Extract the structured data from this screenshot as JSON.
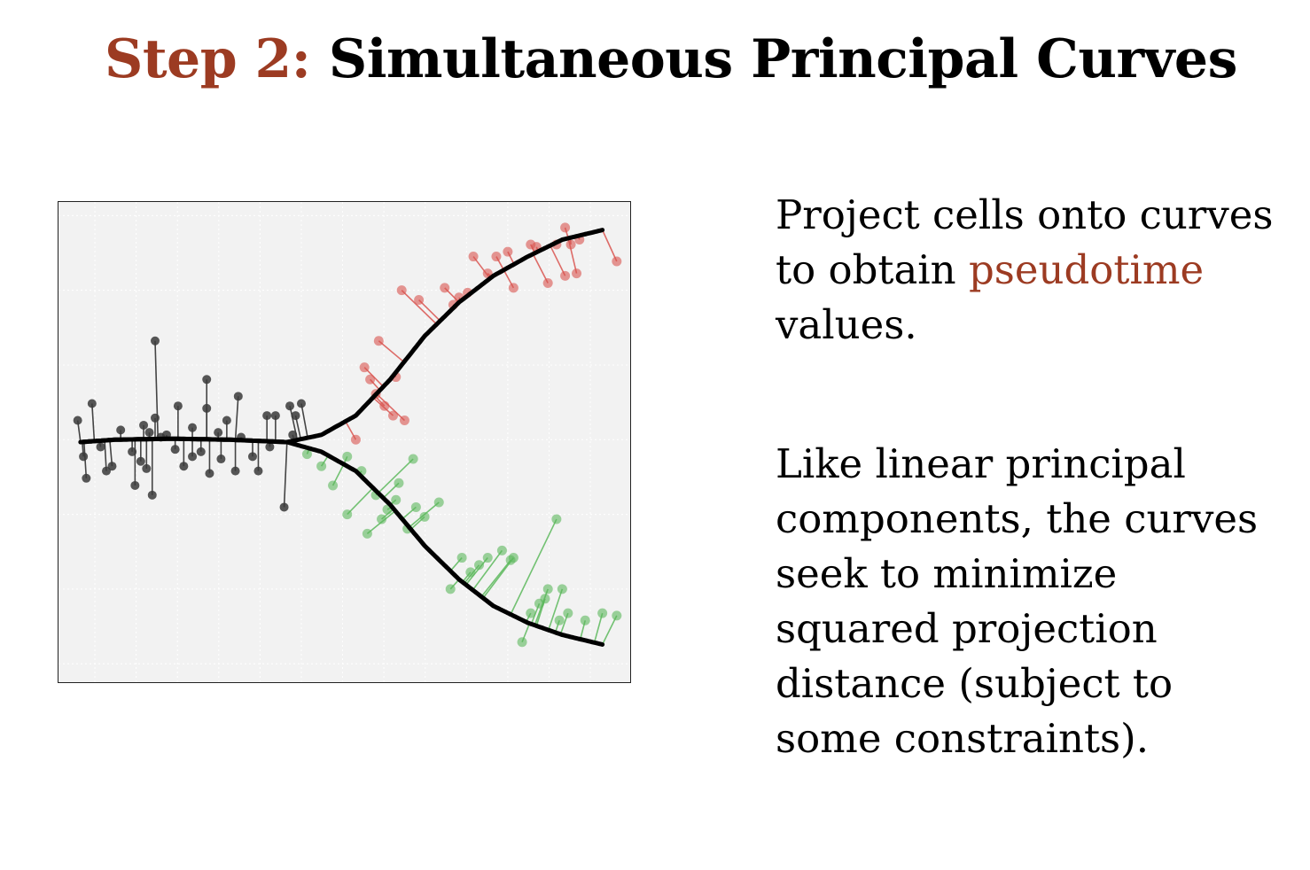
{
  "title": {
    "prefix": "Step 2:",
    "main": "Simultaneous Principal Curves"
  },
  "colors": {
    "accent": "#9c3b22",
    "plot_background": "#f2f2f2",
    "root_lineage": "#3a3a3a",
    "lineage_red": "#d9534f",
    "lineage_green": "#5cb85c",
    "curve": "#000000"
  },
  "paragraph1": {
    "lines": [
      "Project cells onto curves",
      "to obtain ",
      "values."
    ],
    "highlight": "pseudotime"
  },
  "paragraph2": {
    "lines": [
      "Like linear principal",
      "components, the curves",
      "seek to minimize",
      "squared projection",
      "distance (subject to",
      "some constraints)."
    ]
  },
  "chart_data": {
    "type": "scatter",
    "title": "",
    "xlabel": "",
    "ylabel": "",
    "xlim": [
      0,
      10
    ],
    "ylim": [
      -5,
      5
    ],
    "grid": true,
    "curves": [
      {
        "name": "",
        "x": [
          0.4,
          1.0,
          2.0,
          3.0,
          4.0,
          4.6,
          5.2,
          5.8,
          6.4,
          7.0,
          7.6,
          8.2,
          8.8,
          9.5
        ],
        "y": [
          0,
          0.05,
          0.07,
          0.05,
          0.0,
          0.15,
          0.55,
          1.3,
          2.2,
          2.9,
          3.45,
          3.85,
          4.2,
          4.4
        ]
      },
      {
        "name": "",
        "x": [
          0.4,
          1.0,
          2.0,
          3.0,
          4.0,
          4.6,
          5.2,
          5.8,
          6.4,
          7.0,
          7.6,
          8.2,
          8.8,
          9.5
        ],
        "y": [
          0,
          0.05,
          0.07,
          0.05,
          0.0,
          -0.2,
          -0.6,
          -1.3,
          -2.15,
          -2.85,
          -3.4,
          -3.75,
          -4.0,
          -4.2
        ]
      }
    ],
    "points": [
      {
        "g": "root",
        "x": 0.35,
        "y": 0.45
      },
      {
        "g": "root",
        "x": 0.45,
        "y": -0.3
      },
      {
        "g": "root",
        "x": 0.5,
        "y": -0.75
      },
      {
        "g": "root",
        "x": 0.6,
        "y": 0.8
      },
      {
        "g": "root",
        "x": 0.75,
        "y": -0.1
      },
      {
        "g": "root",
        "x": 0.85,
        "y": -0.6
      },
      {
        "g": "root",
        "x": 0.95,
        "y": -0.5
      },
      {
        "g": "root",
        "x": 1.1,
        "y": 0.25
      },
      {
        "g": "root",
        "x": 1.3,
        "y": -0.2
      },
      {
        "g": "root",
        "x": 1.35,
        "y": -0.9
      },
      {
        "g": "root",
        "x": 1.45,
        "y": -0.4
      },
      {
        "g": "root",
        "x": 1.5,
        "y": 0.35
      },
      {
        "g": "root",
        "x": 1.6,
        "y": 0.2
      },
      {
        "g": "root",
        "x": 1.65,
        "y": -1.1
      },
      {
        "g": "root",
        "x": 1.7,
        "y": 0.5
      },
      {
        "g": "root",
        "x": 1.7,
        "y": 2.1
      },
      {
        "g": "root",
        "x": 1.8,
        "y": 0.1
      },
      {
        "g": "root",
        "x": 1.9,
        "y": 0.15
      },
      {
        "g": "root",
        "x": 2.05,
        "y": -0.15
      },
      {
        "g": "root",
        "x": 2.1,
        "y": 0.75
      },
      {
        "g": "root",
        "x": 2.2,
        "y": -0.5
      },
      {
        "g": "root",
        "x": 2.35,
        "y": -0.3
      },
      {
        "g": "root",
        "x": 2.35,
        "y": 0.3
      },
      {
        "g": "root",
        "x": 2.5,
        "y": -0.2
      },
      {
        "g": "root",
        "x": 2.6,
        "y": 0.7
      },
      {
        "g": "root",
        "x": 2.65,
        "y": -0.65
      },
      {
        "g": "root",
        "x": 2.6,
        "y": 1.3
      },
      {
        "g": "root",
        "x": 2.8,
        "y": 0.2
      },
      {
        "g": "root",
        "x": 2.85,
        "y": -0.35
      },
      {
        "g": "root",
        "x": 2.95,
        "y": 0.45
      },
      {
        "g": "root",
        "x": 3.1,
        "y": -0.6
      },
      {
        "g": "root",
        "x": 3.15,
        "y": 0.95
      },
      {
        "g": "root",
        "x": 3.2,
        "y": 0.1
      },
      {
        "g": "root",
        "x": 3.4,
        "y": -0.3
      },
      {
        "g": "root",
        "x": 3.5,
        "y": -0.6
      },
      {
        "g": "root",
        "x": 3.65,
        "y": 0.55
      },
      {
        "g": "root",
        "x": 3.7,
        "y": -0.1
      },
      {
        "g": "root",
        "x": 3.8,
        "y": 0.55
      },
      {
        "g": "root",
        "x": 3.95,
        "y": -1.35
      },
      {
        "g": "root",
        "x": 4.05,
        "y": 0.75
      },
      {
        "g": "root",
        "x": 4.1,
        "y": 0.15
      },
      {
        "g": "root",
        "x": 4.15,
        "y": 0.55
      },
      {
        "g": "root",
        "x": 4.25,
        "y": 0.8
      },
      {
        "g": "root",
        "x": 1.55,
        "y": -0.55
      },
      {
        "g": "red",
        "x": 5.2,
        "y": 0.05
      },
      {
        "g": "red",
        "x": 5.35,
        "y": 1.55
      },
      {
        "g": "red",
        "x": 5.45,
        "y": 1.3
      },
      {
        "g": "red",
        "x": 5.55,
        "y": 1.0
      },
      {
        "g": "red",
        "x": 5.6,
        "y": 2.1
      },
      {
        "g": "red",
        "x": 5.7,
        "y": 0.75
      },
      {
        "g": "red",
        "x": 5.85,
        "y": 0.55
      },
      {
        "g": "red",
        "x": 6.05,
        "y": 0.45
      },
      {
        "g": "red",
        "x": 5.9,
        "y": 1.35
      },
      {
        "g": "red",
        "x": 6.0,
        "y": 3.15
      },
      {
        "g": "red",
        "x": 6.3,
        "y": 2.95
      },
      {
        "g": "red",
        "x": 6.75,
        "y": 3.2
      },
      {
        "g": "red",
        "x": 6.9,
        "y": 2.85
      },
      {
        "g": "red",
        "x": 7.0,
        "y": 3.0
      },
      {
        "g": "red",
        "x": 7.15,
        "y": 3.1
      },
      {
        "g": "red",
        "x": 7.25,
        "y": 3.85
      },
      {
        "g": "red",
        "x": 7.5,
        "y": 3.5
      },
      {
        "g": "red",
        "x": 7.65,
        "y": 3.85
      },
      {
        "g": "red",
        "x": 7.85,
        "y": 3.95
      },
      {
        "g": "red",
        "x": 7.95,
        "y": 3.2
      },
      {
        "g": "red",
        "x": 8.25,
        "y": 4.1
      },
      {
        "g": "red",
        "x": 8.35,
        "y": 4.05
      },
      {
        "g": "red",
        "x": 8.55,
        "y": 3.3
      },
      {
        "g": "red",
        "x": 8.7,
        "y": 4.1
      },
      {
        "g": "red",
        "x": 8.85,
        "y": 3.45
      },
      {
        "g": "red",
        "x": 8.85,
        "y": 4.45
      },
      {
        "g": "red",
        "x": 8.95,
        "y": 4.1
      },
      {
        "g": "red",
        "x": 9.05,
        "y": 3.5
      },
      {
        "g": "red",
        "x": 9.1,
        "y": 4.2
      },
      {
        "g": "red",
        "x": 9.75,
        "y": 3.75
      },
      {
        "g": "green",
        "x": 5.05,
        "y": -0.3
      },
      {
        "g": "green",
        "x": 5.3,
        "y": -0.6
      },
      {
        "g": "green",
        "x": 5.55,
        "y": -1.1
      },
      {
        "g": "green",
        "x": 5.75,
        "y": -1.4
      },
      {
        "g": "green",
        "x": 5.9,
        "y": -1.2
      },
      {
        "g": "green",
        "x": 5.95,
        "y": -0.85
      },
      {
        "g": "green",
        "x": 6.25,
        "y": -1.35
      },
      {
        "g": "green",
        "x": 6.4,
        "y": -1.55
      },
      {
        "g": "green",
        "x": 6.2,
        "y": -0.35
      },
      {
        "g": "green",
        "x": 6.65,
        "y": -1.25
      },
      {
        "g": "green",
        "x": 6.85,
        "y": -3.05
      },
      {
        "g": "green",
        "x": 7.05,
        "y": -2.4
      },
      {
        "g": "green",
        "x": 7.2,
        "y": -2.7
      },
      {
        "g": "green",
        "x": 7.35,
        "y": -2.55
      },
      {
        "g": "green",
        "x": 7.5,
        "y": -2.4
      },
      {
        "g": "green",
        "x": 7.75,
        "y": -2.25
      },
      {
        "g": "green",
        "x": 7.9,
        "y": -2.45
      },
      {
        "g": "green",
        "x": 7.95,
        "y": -2.4
      },
      {
        "g": "green",
        "x": 8.1,
        "y": -4.15
      },
      {
        "g": "green",
        "x": 8.25,
        "y": -3.55
      },
      {
        "g": "green",
        "x": 8.4,
        "y": -3.35
      },
      {
        "g": "green",
        "x": 8.5,
        "y": -3.25
      },
      {
        "g": "green",
        "x": 8.55,
        "y": -3.05
      },
      {
        "g": "green",
        "x": 8.75,
        "y": -3.7
      },
      {
        "g": "green",
        "x": 8.8,
        "y": -3.05
      },
      {
        "g": "green",
        "x": 8.9,
        "y": -3.55
      },
      {
        "g": "green",
        "x": 8.7,
        "y": -1.6
      },
      {
        "g": "green",
        "x": 9.2,
        "y": -3.7
      },
      {
        "g": "green",
        "x": 9.5,
        "y": -3.55
      },
      {
        "g": "green",
        "x": 9.75,
        "y": -3.6
      },
      {
        "g": "green",
        "x": 5.05,
        "y": -1.5
      },
      {
        "g": "green",
        "x": 5.4,
        "y": -1.9
      },
      {
        "g": "green",
        "x": 5.65,
        "y": -1.6
      },
      {
        "g": "green",
        "x": 6.1,
        "y": -1.8
      },
      {
        "g": "green",
        "x": 4.35,
        "y": -0.25
      },
      {
        "g": "green",
        "x": 4.6,
        "y": -0.5
      },
      {
        "g": "green",
        "x": 4.8,
        "y": -0.9
      }
    ]
  }
}
